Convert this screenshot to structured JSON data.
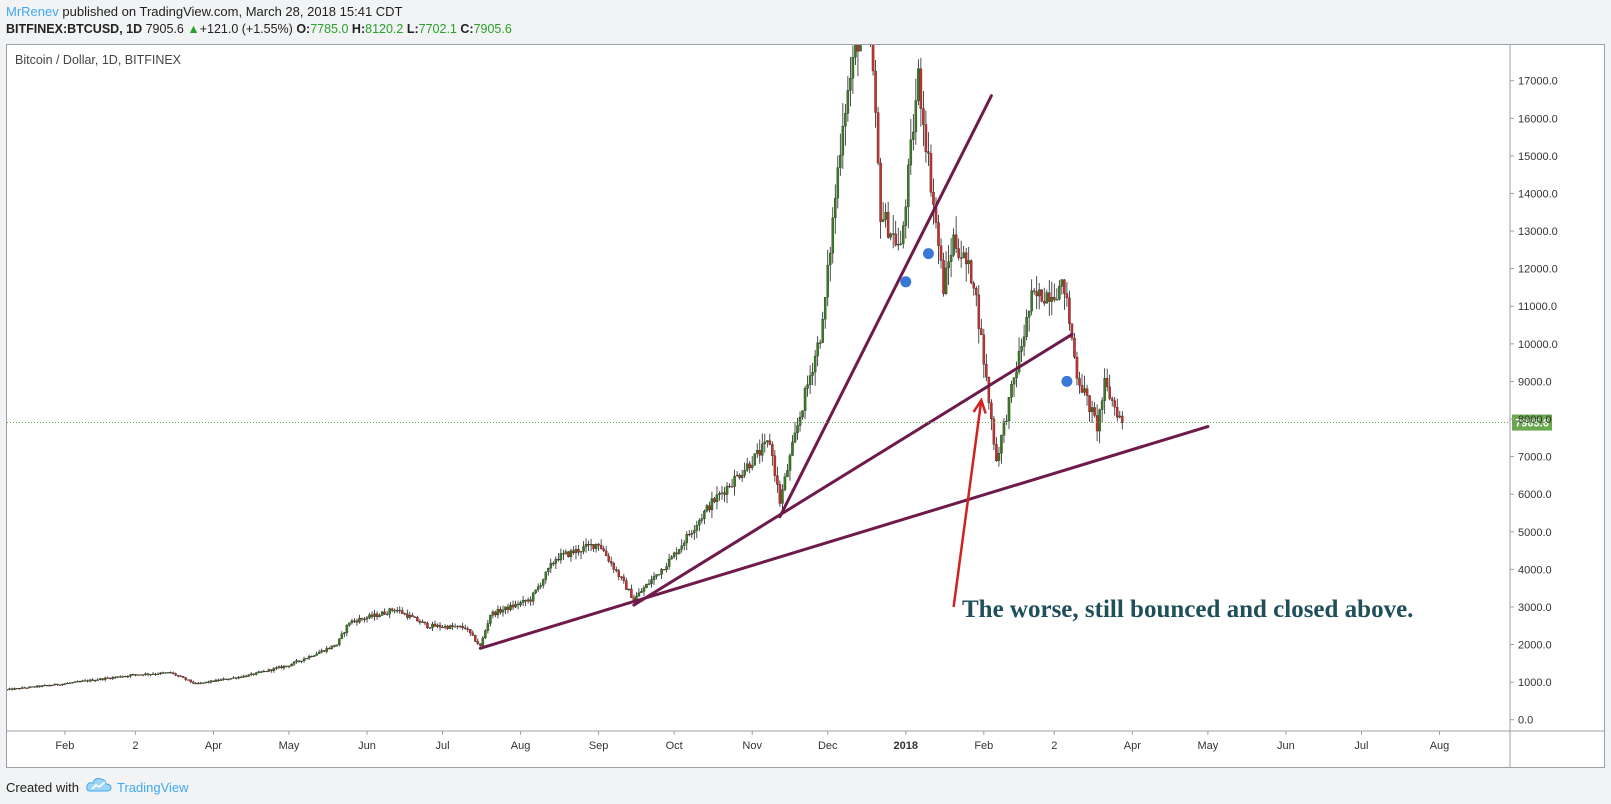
{
  "header": {
    "author": "MrRenev",
    "published_text": "published on TradingView.com, March 28, 2018 15:41 CDT",
    "symbol": "BITFINEX:BTCUSD, 1D",
    "last": "7905.6",
    "change_arrow": "▲",
    "change": "+121.0 (+1.55%)",
    "open_label": "O:",
    "open": "7785.0",
    "high_label": "H:",
    "high": "8120.2",
    "low_label": "L:",
    "low": "7702.1",
    "close_label": "C:",
    "close": "7905.6"
  },
  "footer": {
    "created_with": "Created with",
    "brand": "TradingView",
    "logo_icon": "tradingview-cloud-icon"
  },
  "chart_data": {
    "type": "candlestick",
    "title": "Bitcoin / Dollar, 1D, BITFINEX",
    "colors": {
      "up": "#3a7d1f",
      "down": "#c9302c",
      "wick": "#222222",
      "trendline": "#6e1a4a",
      "marker": "#3a78d8",
      "arrow": "#d22121",
      "last_price_bg": "#6aa84f",
      "annotation": "#1f4f5a"
    },
    "y_ticks": [
      "0.0",
      "1000.0",
      "2000.0",
      "3000.0",
      "4000.0",
      "5000.0",
      "6000.0",
      "7000.0",
      "8000.0",
      "9000.0",
      "10000.0",
      "11000.0",
      "12000.0",
      "13000.0",
      "14000.0",
      "15000.0",
      "16000.0",
      "17000.0"
    ],
    "ylim": [
      -300,
      17950
    ],
    "x_ticks": [
      {
        "label": "Feb",
        "date": "2017-02-01"
      },
      {
        "label": "2",
        "date": "2017-03-01"
      },
      {
        "label": "Apr",
        "date": "2017-04-01"
      },
      {
        "label": "May",
        "date": "2017-05-01"
      },
      {
        "label": "Jun",
        "date": "2017-06-01"
      },
      {
        "label": "Jul",
        "date": "2017-07-01"
      },
      {
        "label": "Aug",
        "date": "2017-08-01"
      },
      {
        "label": "Sep",
        "date": "2017-09-01"
      },
      {
        "label": "Oct",
        "date": "2017-10-01"
      },
      {
        "label": "Nov",
        "date": "2017-11-01"
      },
      {
        "label": "Dec",
        "date": "2017-12-01"
      },
      {
        "label": "2018",
        "date": "2018-01-01",
        "bold": true
      },
      {
        "label": "Feb",
        "date": "2018-02-01"
      },
      {
        "label": "2",
        "date": "2018-03-01"
      },
      {
        "label": "Apr",
        "date": "2018-04-01"
      },
      {
        "label": "May",
        "date": "2018-05-01"
      },
      {
        "label": "Jun",
        "date": "2018-06-01"
      },
      {
        "label": "Jul",
        "date": "2018-07-01"
      },
      {
        "label": "Aug",
        "date": "2018-08-01"
      }
    ],
    "xlim": [
      "2017-01-09",
      "2018-08-29"
    ],
    "price_path": [
      {
        "date": "2017-01-09",
        "price": 800
      },
      {
        "date": "2017-02-01",
        "price": 960
      },
      {
        "date": "2017-03-01",
        "price": 1200
      },
      {
        "date": "2017-03-15",
        "price": 1250
      },
      {
        "date": "2017-03-25",
        "price": 950
      },
      {
        "date": "2017-04-15",
        "price": 1180
      },
      {
        "date": "2017-05-01",
        "price": 1450
      },
      {
        "date": "2017-05-20",
        "price": 2000
      },
      {
        "date": "2017-05-25",
        "price": 2600
      },
      {
        "date": "2017-06-06",
        "price": 2800
      },
      {
        "date": "2017-06-12",
        "price": 2950
      },
      {
        "date": "2017-06-25",
        "price": 2500
      },
      {
        "date": "2017-07-10",
        "price": 2450
      },
      {
        "date": "2017-07-16",
        "price": 1950
      },
      {
        "date": "2017-07-20",
        "price": 2800
      },
      {
        "date": "2017-08-05",
        "price": 3200
      },
      {
        "date": "2017-08-15",
        "price": 4300
      },
      {
        "date": "2017-09-01",
        "price": 4700
      },
      {
        "date": "2017-09-15",
        "price": 3200
      },
      {
        "date": "2017-09-30",
        "price": 4300
      },
      {
        "date": "2017-10-15",
        "price": 5700
      },
      {
        "date": "2017-11-01",
        "price": 6900
      },
      {
        "date": "2017-11-08",
        "price": 7400
      },
      {
        "date": "2017-11-12",
        "price": 5800
      },
      {
        "date": "2017-11-20",
        "price": 8100
      },
      {
        "date": "2017-11-29",
        "price": 10500
      },
      {
        "date": "2017-12-07",
        "price": 16000
      },
      {
        "date": "2017-12-17",
        "price": 19500
      },
      {
        "date": "2017-12-22",
        "price": 13500
      },
      {
        "date": "2017-12-30",
        "price": 12500
      },
      {
        "date": "2018-01-06",
        "price": 17100
      },
      {
        "date": "2018-01-16",
        "price": 11500
      },
      {
        "date": "2018-01-20",
        "price": 12800
      },
      {
        "date": "2018-01-28",
        "price": 11700
      },
      {
        "date": "2018-02-06",
        "price": 6900
      },
      {
        "date": "2018-02-20",
        "price": 11200
      },
      {
        "date": "2018-03-05",
        "price": 11500
      },
      {
        "date": "2018-03-10",
        "price": 9200
      },
      {
        "date": "2018-03-18",
        "price": 7800
      },
      {
        "date": "2018-03-21",
        "price": 8900
      },
      {
        "date": "2018-03-28",
        "price": 7905.6
      }
    ],
    "trendlines": [
      {
        "from": {
          "date": "2017-07-16",
          "price": 1900
        },
        "to": {
          "date": "2018-05-01",
          "price": 7800
        }
      },
      {
        "from": {
          "date": "2017-09-15",
          "price": 3050
        },
        "to": {
          "date": "2018-03-08",
          "price": 10250
        }
      },
      {
        "from": {
          "date": "2017-11-12",
          "price": 5400
        },
        "to": {
          "date": "2018-02-04",
          "price": 16600
        }
      }
    ],
    "markers": [
      {
        "date": "2018-01-01",
        "price": 11650
      },
      {
        "date": "2018-01-10",
        "price": 12400
      },
      {
        "date": "2018-03-06",
        "price": 9000
      }
    ],
    "arrow": {
      "from": {
        "date": "2018-01-20",
        "price": 3000
      },
      "to": {
        "date": "2018-01-31",
        "price": 8500
      }
    },
    "last_price": 7905.6,
    "last_price_label": "7905.6",
    "annotation": "The worse, still bounced and closed above."
  }
}
